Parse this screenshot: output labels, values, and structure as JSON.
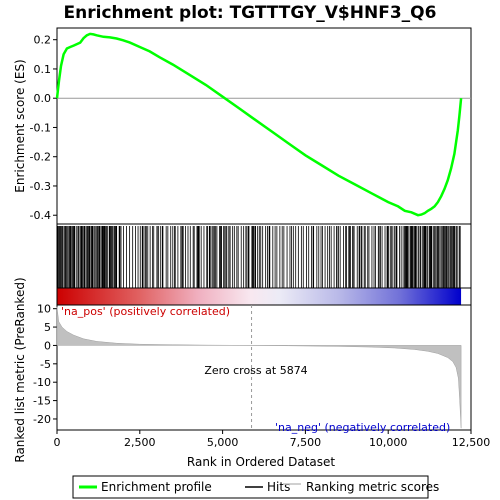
{
  "chart_data": {
    "type": "line",
    "title": "Enrichment plot: TGTTTGY_V$HNF3_Q6",
    "xlabel": "Rank in Ordered Dataset",
    "ylabel_top": "Enrichment score (ES)",
    "ylabel_bottom": "Ranked list metric (PreRanked)",
    "xlim": [
      0,
      12500
    ],
    "x_ticks": [
      0,
      2500,
      5000,
      7500,
      10000,
      12500
    ],
    "x_tick_labels": [
      "0",
      "2,500",
      "5,000",
      "7,500",
      "10,000",
      "12,500"
    ],
    "es_ylim": [
      -0.43,
      0.24
    ],
    "es_ticks": [
      0.2,
      0.1,
      0.0,
      -0.1,
      -0.2,
      -0.3,
      -0.4
    ],
    "es_tick_labels": [
      "0.2",
      "0.1",
      "0.0",
      "-0.1",
      "-0.2",
      "-0.3",
      "-0.4"
    ],
    "metric_ylim": [
      -23,
      11
    ],
    "metric_ticks": [
      10,
      5,
      0,
      -5,
      -10,
      -15,
      -20
    ],
    "metric_tick_labels": [
      "10",
      "5",
      "0",
      "-5",
      "-10",
      "-15",
      "-20"
    ],
    "dataset_size": 12200,
    "zero_cross": 5874,
    "zero_cross_label": "Zero cross at 5874",
    "pos_label": "'na_pos' (positively correlated)",
    "neg_label": "'na_neg' (negatively correlated)",
    "series": [
      {
        "name": "Enrichment profile",
        "color": "#00ff00",
        "x": [
          0,
          60,
          120,
          200,
          300,
          400,
          500,
          600,
          700,
          800,
          900,
          1000,
          1100,
          1200,
          1400,
          1600,
          1800,
          2000,
          2200,
          2500,
          2800,
          3100,
          3500,
          4000,
          4500,
          5000,
          5500,
          5874,
          6500,
          7000,
          7500,
          8000,
          8500,
          9000,
          9500,
          10000,
          10300,
          10500,
          10700,
          10900,
          11000,
          11100,
          11200,
          11300,
          11400,
          11500,
          11600,
          11700,
          11800,
          11900,
          12000,
          12050,
          12100,
          12150,
          12200
        ],
        "y": [
          0.0,
          0.06,
          0.11,
          0.15,
          0.17,
          0.175,
          0.18,
          0.185,
          0.19,
          0.205,
          0.215,
          0.22,
          0.218,
          0.215,
          0.21,
          0.208,
          0.204,
          0.198,
          0.19,
          0.175,
          0.16,
          0.14,
          0.115,
          0.08,
          0.045,
          0.005,
          -0.035,
          -0.065,
          -0.115,
          -0.155,
          -0.195,
          -0.23,
          -0.265,
          -0.295,
          -0.325,
          -0.355,
          -0.37,
          -0.385,
          -0.39,
          -0.4,
          -0.398,
          -0.393,
          -0.385,
          -0.378,
          -0.37,
          -0.355,
          -0.335,
          -0.31,
          -0.28,
          -0.24,
          -0.19,
          -0.15,
          -0.11,
          -0.06,
          0.0
        ]
      },
      {
        "name": "Hits",
        "color": "#000000"
      },
      {
        "name": "Ranking metric scores",
        "color": "#c0c0c0",
        "x": [
          0,
          50,
          150,
          300,
          500,
          800,
          1200,
          1800,
          2500,
          3500,
          4500,
          5500,
          5874,
          7000,
          8500,
          9500,
          10200,
          10800,
          11200,
          11500,
          11800,
          11950,
          12050,
          12120,
          12160,
          12200
        ],
        "y": [
          10.5,
          6.5,
          5.0,
          3.8,
          2.8,
          1.8,
          1.1,
          0.6,
          0.35,
          0.2,
          0.1,
          0.03,
          0.0,
          -0.1,
          -0.25,
          -0.45,
          -0.7,
          -1.1,
          -1.6,
          -2.2,
          -3.3,
          -4.4,
          -6.0,
          -9.0,
          -15.0,
          -22.5
        ]
      }
    ],
    "legend": [
      "Enrichment profile",
      "Hits",
      "Ranking metric scores"
    ]
  }
}
